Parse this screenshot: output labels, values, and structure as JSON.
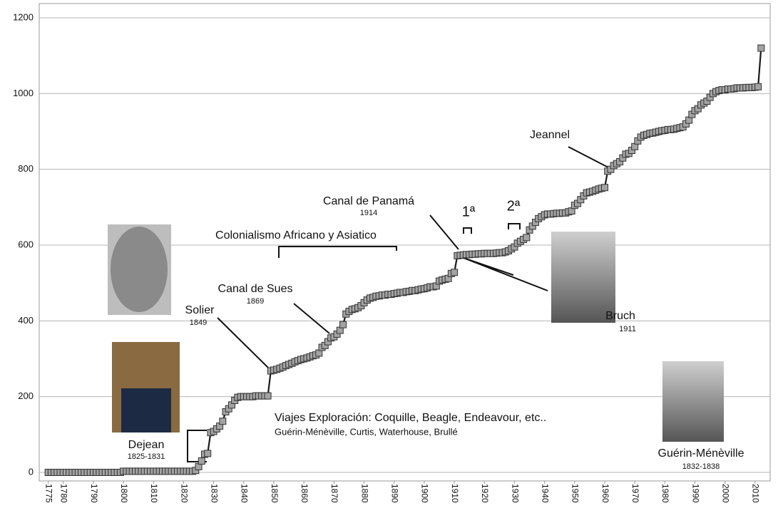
{
  "chart_data": {
    "type": "line",
    "x": [
      1775,
      1776,
      1777,
      1778,
      1779,
      1780,
      1781,
      1782,
      1783,
      1784,
      1785,
      1786,
      1787,
      1788,
      1789,
      1790,
      1791,
      1792,
      1793,
      1794,
      1795,
      1796,
      1797,
      1798,
      1799,
      1800,
      1801,
      1802,
      1803,
      1804,
      1805,
      1806,
      1807,
      1808,
      1809,
      1810,
      1811,
      1812,
      1813,
      1814,
      1815,
      1816,
      1817,
      1818,
      1819,
      1820,
      1821,
      1822,
      1823,
      1824,
      1825,
      1826,
      1827,
      1828,
      1829,
      1830,
      1831,
      1832,
      1833,
      1834,
      1835,
      1836,
      1837,
      1838,
      1839,
      1840,
      1841,
      1842,
      1843,
      1844,
      1845,
      1846,
      1847,
      1848,
      1849,
      1850,
      1851,
      1852,
      1853,
      1854,
      1855,
      1856,
      1857,
      1858,
      1859,
      1860,
      1861,
      1862,
      1863,
      1864,
      1865,
      1866,
      1867,
      1868,
      1869,
      1870,
      1871,
      1872,
      1873,
      1874,
      1875,
      1876,
      1877,
      1878,
      1879,
      1880,
      1881,
      1882,
      1883,
      1884,
      1885,
      1886,
      1887,
      1888,
      1889,
      1890,
      1891,
      1892,
      1893,
      1894,
      1895,
      1896,
      1897,
      1898,
      1899,
      1900,
      1901,
      1902,
      1903,
      1904,
      1905,
      1906,
      1907,
      1908,
      1909,
      1910,
      1911,
      1912,
      1913,
      1914,
      1915,
      1916,
      1917,
      1918,
      1919,
      1920,
      1921,
      1922,
      1923,
      1924,
      1925,
      1926,
      1927,
      1928,
      1929,
      1930,
      1931,
      1932,
      1933,
      1934,
      1935,
      1936,
      1937,
      1938,
      1939,
      1940,
      1941,
      1942,
      1943,
      1944,
      1945,
      1946,
      1947,
      1948,
      1949,
      1950,
      1951,
      1952,
      1953,
      1954,
      1955,
      1956,
      1957,
      1958,
      1959,
      1960,
      1961,
      1962,
      1963,
      1964,
      1965,
      1966,
      1967,
      1968,
      1969,
      1970,
      1971,
      1972,
      1973,
      1974,
      1975,
      1976,
      1977,
      1978,
      1979,
      1980,
      1981,
      1982,
      1983,
      1984,
      1985,
      1986,
      1987,
      1988,
      1989,
      1990,
      1991,
      1992,
      1993,
      1994,
      1995,
      1996,
      1997,
      1998,
      1999,
      2000,
      2001,
      2002,
      2003,
      2004,
      2005,
      2006,
      2007,
      2008,
      2009,
      2010,
      2011,
      2012
    ],
    "values": [
      0,
      0,
      0,
      0,
      0,
      0,
      0,
      0,
      0,
      0,
      0,
      0,
      0,
      0,
      0,
      0,
      0,
      0,
      0,
      0,
      0,
      0,
      0,
      0,
      0,
      3,
      3,
      3,
      3,
      3,
      3,
      3,
      3,
      3,
      3,
      3,
      3,
      3,
      3,
      3,
      3,
      3,
      3,
      3,
      3,
      3,
      3,
      3,
      3,
      5,
      15,
      30,
      48,
      50,
      105,
      108,
      115,
      122,
      135,
      160,
      168,
      178,
      190,
      198,
      200,
      200,
      200,
      200,
      200,
      202,
      202,
      202,
      202,
      202,
      268,
      270,
      272,
      275,
      278,
      282,
      285,
      288,
      292,
      295,
      298,
      300,
      302,
      305,
      308,
      310,
      315,
      330,
      335,
      345,
      355,
      358,
      365,
      375,
      390,
      418,
      425,
      430,
      432,
      435,
      440,
      448,
      455,
      460,
      462,
      465,
      466,
      468,
      468,
      470,
      470,
      472,
      473,
      475,
      475,
      477,
      478,
      480,
      480,
      482,
      484,
      485,
      487,
      490,
      490,
      492,
      505,
      508,
      510,
      512,
      525,
      528,
      572,
      573,
      574,
      575,
      575,
      576,
      576,
      577,
      577,
      578,
      578,
      578,
      578,
      579,
      580,
      580,
      582,
      585,
      590,
      595,
      605,
      610,
      615,
      620,
      640,
      650,
      660,
      670,
      675,
      680,
      682,
      682,
      683,
      684,
      684,
      685,
      685,
      688,
      690,
      705,
      710,
      720,
      730,
      738,
      740,
      742,
      745,
      748,
      750,
      752,
      795,
      800,
      810,
      815,
      820,
      830,
      840,
      842,
      850,
      860,
      875,
      885,
      890,
      892,
      895,
      896,
      898,
      900,
      902,
      903,
      905,
      905,
      906,
      908,
      910,
      912,
      920,
      930,
      945,
      955,
      960,
      970,
      975,
      980,
      990,
      1000,
      1005,
      1008,
      1010,
      1010,
      1012,
      1012,
      1013,
      1015,
      1015,
      1015,
      1016,
      1016,
      1016,
      1017,
      1018,
      1120
    ],
    "color": "#a3a3a3",
    "xlim": [
      1772,
      2015
    ],
    "xticks": [
      1775,
      1780,
      1790,
      1800,
      1810,
      1820,
      1830,
      1840,
      1850,
      1860,
      1870,
      1880,
      1890,
      1900,
      1910,
      1920,
      1930,
      1940,
      1950,
      1960,
      1970,
      1980,
      1990,
      2000,
      2010
    ],
    "ylim": [
      0,
      1200
    ],
    "yticks": [
      0,
      200,
      400,
      600,
      800,
      1000,
      1200
    ],
    "grid": true,
    "annotations": [
      {
        "text": "Dejean",
        "sub": "1825-1831"
      },
      {
        "text": "Solier",
        "sub": "1849"
      },
      {
        "text": "Canal de Sues",
        "sub": "1869"
      },
      {
        "text": "Colonialismo Africano y Asiatico"
      },
      {
        "text": "Canal de Panamá",
        "sub": "1914"
      },
      {
        "text": "1ª"
      },
      {
        "text": "2ª"
      },
      {
        "text": "Jeannel"
      },
      {
        "text": "Bruch",
        "sub": "1911"
      },
      {
        "text": "Guérin-Ménèville",
        "sub": "1832-1838"
      },
      {
        "text": "Viajes Exploración: Coquille, Beagle, Endeavour, etc.."
      },
      {
        "text": "Guérin-Ménèville, Curtis, Waterhouse, Brullé"
      }
    ]
  }
}
